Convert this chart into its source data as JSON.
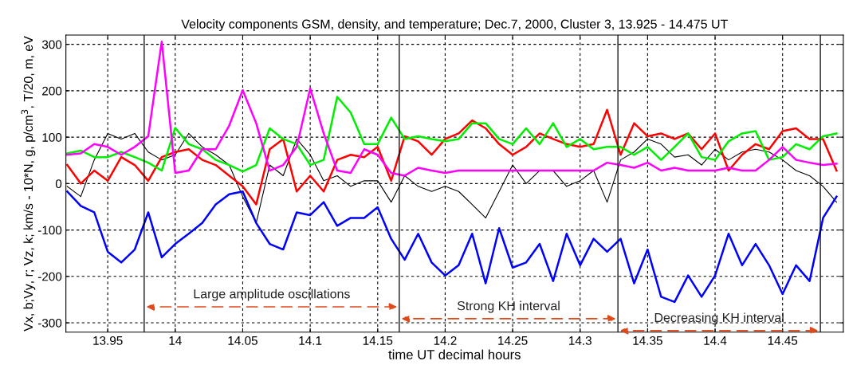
{
  "chart_data": {
    "type": "line",
    "title": "Velocity components GSM, density, and temperature; Dec.7, 2000, Cluster 3, 13.925 - 14.475 UT",
    "xlabel": "time UT decimal hours",
    "ylabel": "Vx, b;Vy, r; Vz, k; km/s - 10*N, g, p/cm$^{3}$, T/20, m, eV",
    "x": [
      13.92,
      13.93,
      13.94,
      13.95,
      13.96,
      13.97,
      13.98,
      13.99,
      14.0,
      14.01,
      14.02,
      14.03,
      14.04,
      14.05,
      14.06,
      14.07,
      14.08,
      14.09,
      14.1,
      14.11,
      14.12,
      14.13,
      14.14,
      14.15,
      14.16,
      14.17,
      14.18,
      14.19,
      14.2,
      14.21,
      14.22,
      14.23,
      14.24,
      14.25,
      14.26,
      14.27,
      14.28,
      14.29,
      14.3,
      14.31,
      14.32,
      14.33,
      14.34,
      14.35,
      14.36,
      14.37,
      14.38,
      14.39,
      14.4,
      14.41,
      14.42,
      14.43,
      14.44,
      14.45,
      14.46,
      14.47,
      14.48,
      14.49
    ],
    "series": [
      {
        "color": "#000000",
        "values": [
          -6,
          -28,
          51,
          108,
          96,
          108,
          68,
          51,
          62,
          108,
          79,
          62,
          40,
          -28,
          -85,
          40,
          17,
          96,
          62,
          6,
          17,
          -6,
          6,
          6,
          -40,
          17,
          -6,
          -17,
          -6,
          -17,
          -45,
          -74,
          -17,
          40,
          0,
          28,
          28,
          -6,
          6,
          28,
          -40,
          51,
          68,
          96,
          85,
          57,
          62,
          40,
          74,
          51,
          68,
          74,
          68,
          51,
          28,
          17,
          -6,
          -40
        ]
      },
      {
        "color": "#ff0000",
        "values": [
          40,
          0,
          28,
          6,
          57,
          40,
          6,
          57,
          68,
          74,
          51,
          40,
          17,
          -6,
          -45,
          74,
          96,
          -17,
          17,
          -17,
          51,
          62,
          57,
          79,
          6,
          102,
          91,
          62,
          96,
          108,
          136,
          119,
          85,
          62,
          79,
          108,
          96,
          85,
          79,
          85,
          159,
          62,
          130,
          102,
          108,
          96,
          108,
          74,
          108,
          28,
          62,
          85,
          74,
          113,
          119,
          96,
          96,
          28
        ]
      },
      {
        "color": "#00ee00",
        "values": [
          65,
          71,
          57,
          57,
          68,
          57,
          45,
          28,
          120,
          85,
          74,
          51,
          40,
          26,
          40,
          119,
          96,
          85,
          40,
          51,
          187,
          153,
          85,
          85,
          142,
          96,
          102,
          96,
          91,
          96,
          130,
          130,
          96,
          85,
          119,
          85,
          130,
          79,
          96,
          74,
          79,
          79,
          62,
          79,
          51,
          79,
          108,
          57,
          51,
          91,
          108,
          113,
          51,
          57,
          85,
          74,
          102,
          108
        ]
      },
      {
        "color": "#ff00ff",
        "values": [
          62,
          65,
          85,
          79,
          62,
          79,
          102,
          306,
          23,
          28,
          74,
          74,
          125,
          201,
          130,
          28,
          40,
          79,
          205,
          108,
          28,
          23,
          74,
          62,
          23,
          17,
          34,
          28,
          23,
          28,
          28,
          28,
          28,
          28,
          28,
          28,
          28,
          28,
          28,
          28,
          45,
          40,
          34,
          45,
          28,
          34,
          28,
          28,
          28,
          34,
          28,
          28,
          51,
          79,
          51,
          45,
          40,
          43
        ]
      },
      {
        "color": "#0000ff",
        "values": [
          -17,
          -48,
          -62,
          -147,
          -170,
          -142,
          -62,
          -159,
          -130,
          -108,
          -85,
          -45,
          -23,
          -17,
          -85,
          -130,
          -142,
          -62,
          -68,
          -40,
          -91,
          -74,
          -74,
          -51,
          -119,
          -164,
          -108,
          -170,
          -198,
          -176,
          -108,
          -215,
          -96,
          -181,
          -170,
          -130,
          -210,
          -108,
          -176,
          -119,
          -147,
          -119,
          -215,
          -142,
          -244,
          -255,
          -198,
          -244,
          -198,
          -108,
          -176,
          -130,
          -176,
          -238,
          -176,
          -210,
          -74,
          -28
        ]
      }
    ],
    "xlim": [
      13.919,
      14.495
    ],
    "ylim": [
      -320,
      320
    ],
    "xticks": [
      13.95,
      14,
      14.05,
      14.1,
      14.15,
      14.2,
      14.25,
      14.3,
      14.35,
      14.4,
      14.45
    ],
    "yticks": [
      -300,
      -200,
      -100,
      0,
      100,
      200,
      300
    ],
    "grid": true,
    "legend": false,
    "line_style": "solid",
    "marker": "none",
    "ref_lines": [
      {
        "axis": "x",
        "value": 13.977,
        "color": "#000000"
      },
      {
        "axis": "x",
        "value": 14.166,
        "color": "#000000"
      },
      {
        "axis": "x",
        "value": 14.328,
        "color": "#000000"
      },
      {
        "axis": "x",
        "value": 14.478,
        "color": "#000000"
      }
    ],
    "annotations": [
      "Large amplitude oscillations",
      "Strong KH interval",
      "Decreasing KH interval"
    ]
  }
}
